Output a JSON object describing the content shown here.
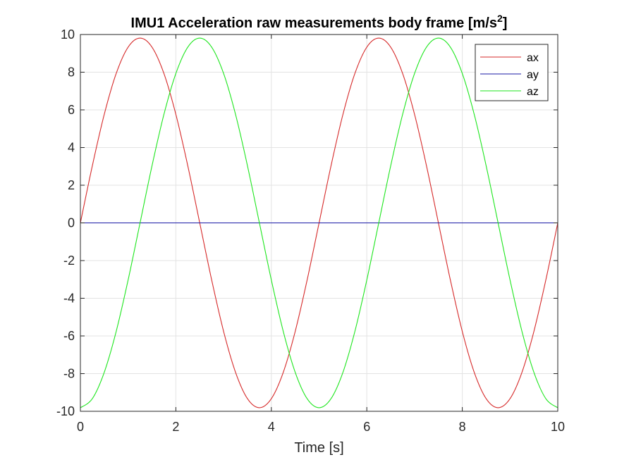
{
  "chart_data": {
    "type": "line",
    "title": "IMU1 Acceleration raw measurements body frame [m/s",
    "title_superscript": "2",
    "title_suffix": "]",
    "xlabel": "Time [s]",
    "ylabel": "",
    "xlim": [
      0,
      10
    ],
    "ylim": [
      -10,
      10
    ],
    "xticks": [
      "0",
      "2",
      "4",
      "6",
      "8",
      "10"
    ],
    "yticks": [
      "-10",
      "-8",
      "-6",
      "-4",
      "-2",
      "0",
      "2",
      "4",
      "6",
      "8",
      "10"
    ],
    "grid": true,
    "legend_position": "top-right",
    "x": [
      0,
      0.25,
      0.5,
      0.75,
      1.0,
      1.25,
      1.5,
      1.75,
      2.0,
      2.25,
      2.5,
      2.75,
      3.0,
      3.25,
      3.5,
      3.75,
      4.0,
      4.25,
      4.5,
      4.75,
      5.0,
      5.25,
      5.5,
      5.75,
      6.0,
      6.25,
      6.5,
      6.75,
      7.0,
      7.25,
      7.5,
      7.75,
      8.0,
      8.25,
      8.5,
      8.75,
      9.0,
      9.25,
      9.5,
      9.75,
      10.0
    ],
    "series": [
      {
        "name": "ax",
        "color": "#d62a2a",
        "values": [
          0,
          3.03,
          5.76,
          7.93,
          9.33,
          9.81,
          9.33,
          7.93,
          5.76,
          3.03,
          0,
          -3.03,
          -5.76,
          -7.93,
          -9.33,
          -9.81,
          -9.33,
          -7.93,
          -5.76,
          -3.03,
          0,
          3.03,
          5.76,
          7.93,
          9.33,
          9.81,
          9.33,
          7.93,
          5.76,
          3.03,
          0,
          -3.03,
          -5.76,
          -7.93,
          -9.33,
          -9.81,
          -9.33,
          -7.93,
          -5.76,
          -3.03,
          0
        ]
      },
      {
        "name": "ay",
        "color": "#1a1aa6",
        "values": [
          0,
          0,
          0,
          0,
          0,
          0,
          0,
          0,
          0,
          0,
          0,
          0,
          0,
          0,
          0,
          0,
          0,
          0,
          0,
          0,
          0,
          0,
          0,
          0,
          0,
          0,
          0,
          0,
          0,
          0,
          0,
          0,
          0,
          0,
          0,
          0,
          0,
          0,
          0,
          0,
          0
        ]
      },
      {
        "name": "az",
        "color": "#1ee61e",
        "values": [
          -9.81,
          -9.33,
          -7.93,
          -5.76,
          -3.03,
          0,
          3.03,
          5.76,
          7.93,
          9.33,
          9.81,
          9.33,
          7.93,
          5.76,
          3.03,
          0,
          -3.03,
          -5.76,
          -7.93,
          -9.33,
          -9.81,
          -9.33,
          -7.93,
          -5.76,
          -3.03,
          0,
          3.03,
          5.76,
          7.93,
          9.33,
          9.81,
          9.33,
          7.93,
          5.76,
          3.03,
          0,
          -3.03,
          -5.76,
          -7.93,
          -9.33,
          -9.81
        ]
      }
    ]
  }
}
